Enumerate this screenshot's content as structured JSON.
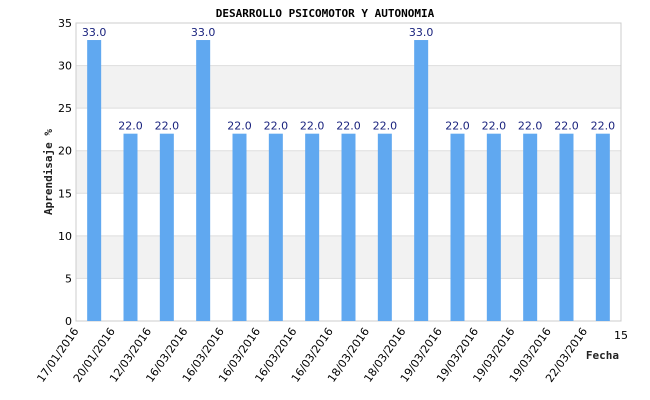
{
  "chart_data": {
    "type": "bar",
    "title": "DESARROLLO PSICOMOTOR Y AUTONOMIA",
    "ylabel": "Aprendisaje %",
    "xlabel": "Fecha",
    "ylim": [
      0,
      35
    ],
    "yticks": [
      "0",
      "5",
      "10",
      "15",
      "20",
      "25",
      "30",
      "35"
    ],
    "categories": [
      "17/01/2016",
      "20/01/2016",
      "12/03/2016",
      "16/03/2016",
      "16/03/2016",
      "16/03/2016",
      "16/03/2016",
      "16/03/2016",
      "18/03/2016",
      "18/03/2016",
      "19/03/2016",
      "19/03/2016",
      "19/03/2016",
      "19/03/2016",
      "22/03/2016"
    ],
    "extra_tick": "15",
    "values": [
      33.0,
      22.0,
      22.0,
      33.0,
      22.0,
      22.0,
      22.0,
      22.0,
      22.0,
      33.0,
      22.0,
      22.0,
      22.0,
      22.0,
      22.0
    ],
    "data_labels": [
      "33.0",
      "22.0",
      "22.0",
      "33.0",
      "22.0",
      "22.0",
      "22.0",
      "22.0",
      "22.0",
      "33.0",
      "22.0",
      "22.0",
      "22.0",
      "22.0",
      "22.0"
    ],
    "bar_color": "#60a8f0",
    "grid": true,
    "band_color": "#f2f2f2"
  }
}
